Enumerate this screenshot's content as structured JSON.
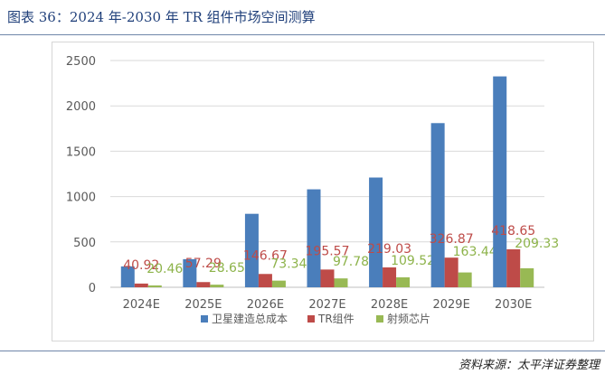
{
  "header": {
    "title": "图表 36：2024 年-2030 年 TR 组件市场空间测算"
  },
  "footer": {
    "source": "资料来源：太平洋证券整理"
  },
  "colors": {
    "series_0": "#4a7ebb",
    "series_1": "#be4b48",
    "series_2": "#98b954",
    "label_0": "#be4b48",
    "label_1": "#be4b48",
    "label_2": "#8db34a",
    "axis_text": "#595959",
    "gridline": "#d9d9d9",
    "title": "#1f3f7a"
  },
  "chart_data": {
    "type": "bar",
    "title": "",
    "xlabel": "",
    "ylabel": "",
    "ylim": [
      0,
      2500
    ],
    "yticks": [
      0,
      500,
      1000,
      1500,
      2000,
      2500
    ],
    "grid": true,
    "legend_position": "bottom",
    "categories": [
      "2024E",
      "2025E",
      "2026E",
      "2027E",
      "2028E",
      "2029E",
      "2030E"
    ],
    "series": [
      {
        "name": "卫星建造总成本",
        "values": [
          230,
          310,
          810,
          1080,
          1210,
          1810,
          2325
        ],
        "labels": [
          "",
          "",
          "",
          "",
          "",
          "",
          ""
        ]
      },
      {
        "name": "TR组件",
        "values": [
          40.92,
          57.29,
          146.67,
          195.57,
          219.03,
          326.87,
          418.65
        ],
        "labels": [
          "40.92",
          "57.29",
          "146.67",
          "195.57",
          "219.03",
          "326.87",
          "418.65"
        ]
      },
      {
        "name": "射频芯片",
        "values": [
          20.46,
          28.65,
          73.34,
          97.78,
          109.52,
          163.44,
          209.33
        ],
        "labels": [
          "20.46",
          "28.65",
          "73.34",
          "97.78",
          "109.52",
          "163.44",
          "209.33"
        ]
      }
    ]
  }
}
